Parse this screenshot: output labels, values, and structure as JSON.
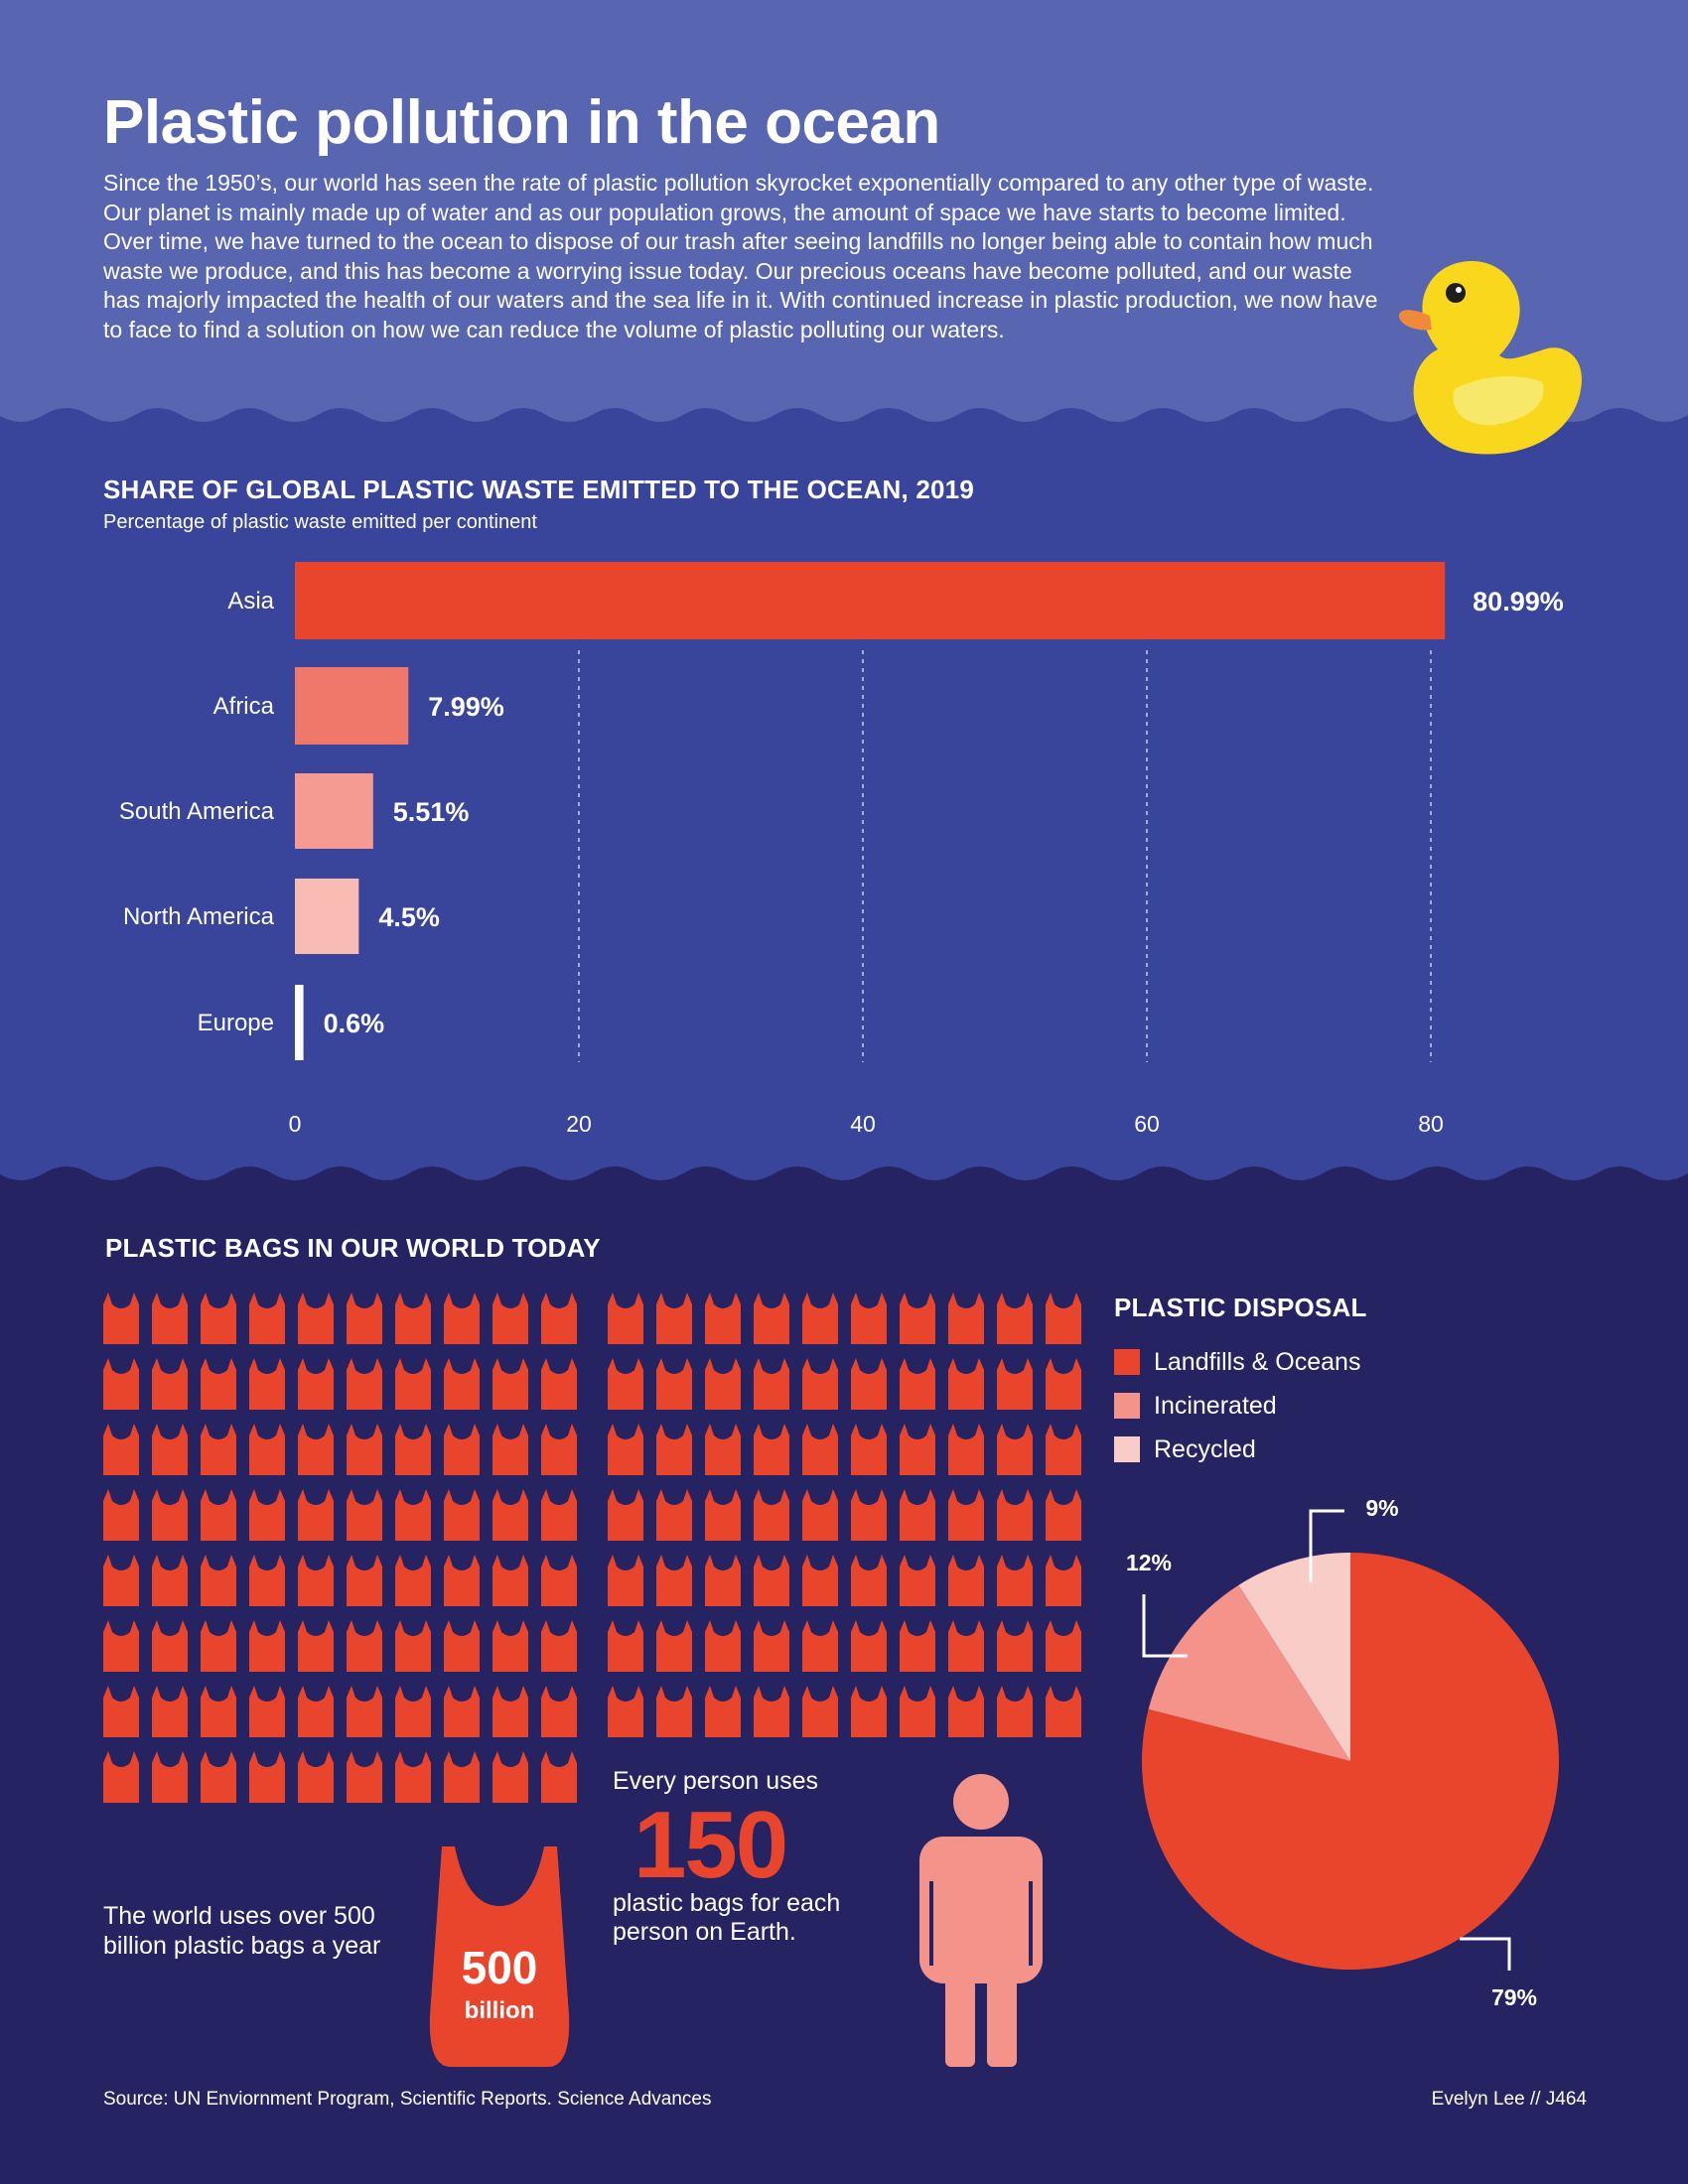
{
  "header": {
    "title": "Plastic pollution in the ocean",
    "intro": "Since the 1950’s, our world has seen the rate of plastic pollution skyrocket exponentially compared to any other type of waste. Our planet is mainly made up of water and as our population grows, the amount of space we have starts to become limited. Over time, we have turned to the ocean to dispose of our trash after seeing landfills no longer being able to contain how much waste we produce, and this has become a worrying issue today. Our precious oceans have become polluted, and our waste has majorly impacted the health of our waters and the sea life in it. With continued increase in plastic production, we now have to face to find a solution on how we can reduce the volume of plastic polluting our waters."
  },
  "bags_section": {
    "title": "PLASTIC BAGS IN OUR WORLD TODAY",
    "world_text": "The world uses over 500 billion plastic bags a year",
    "big_bag_number": "500",
    "big_bag_unit": "billion",
    "every_person": "Every person uses",
    "per_person_number": "150",
    "per_person_text": "plastic bags for each person on Earth.",
    "icon": "shopping-bag-icon",
    "person_icon": "person-icon"
  },
  "footer": {
    "source": "Source: UN Enviornment Program, Scientific Reports. Science Advances",
    "credit": "Evelyn Lee // J464"
  },
  "colors": {
    "top_bg": "#5865b1",
    "middle_bg": "#38459a",
    "bottom_bg": "#252361",
    "accent": "#e9452c",
    "duck": "#f9d71c"
  },
  "chart_data": [
    {
      "type": "bar",
      "orientation": "horizontal",
      "title": "SHARE OF GLOBAL PLASTIC WASTE EMITTED TO THE OCEAN, 2019",
      "subtitle": "Percentage of plastic waste emitted per continent",
      "categories": [
        "Asia",
        "Africa",
        "South America",
        "North America",
        "Europe"
      ],
      "values": [
        80.99,
        7.99,
        5.51,
        4.5,
        0.6
      ],
      "value_labels": [
        "80.99%",
        "7.99%",
        "5.51%",
        "4.5%",
        "0.6%"
      ],
      "bar_colors": [
        "#e9452c",
        "#f0786a",
        "#f59b91",
        "#f9bcb5",
        "#ffffff"
      ],
      "xlim": [
        0,
        80
      ],
      "xticks": [
        0,
        20,
        40,
        60,
        80
      ],
      "grid": "vertical dashed"
    },
    {
      "type": "pie",
      "title": "PLASTIC DISPOSAL",
      "legend": "top",
      "slices": [
        {
          "name": "Landfills & Oceans",
          "value": 79,
          "label": "79%",
          "color": "#e9452c"
        },
        {
          "name": "Incinerated",
          "value": 12,
          "label": "12%",
          "color": "#f49389"
        },
        {
          "name": "Recycled",
          "value": 9,
          "label": "9%",
          "color": "#f9cdc7"
        }
      ]
    }
  ]
}
